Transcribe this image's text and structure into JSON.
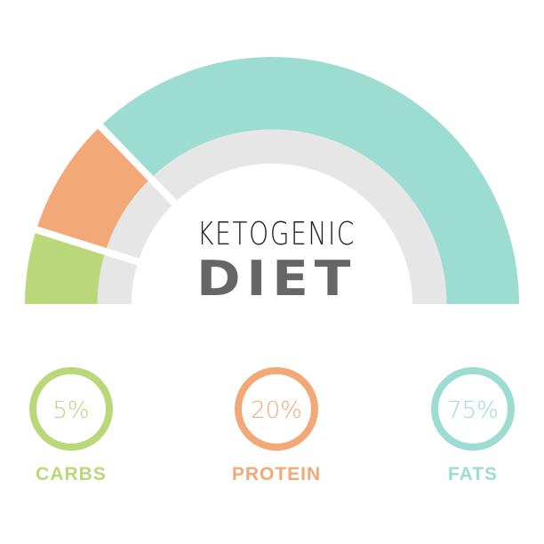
{
  "title_line1": "KETOGENIC",
  "title_line2": "DIET",
  "chart_data": {
    "type": "pie",
    "style": "semi-donut",
    "categories": [
      "CARBS",
      "PROTEIN",
      "FATS"
    ],
    "values": [
      5,
      20,
      75
    ],
    "labels": [
      "5%",
      "20%",
      "75%"
    ],
    "colors": [
      "#bad77a",
      "#f2a877",
      "#9cdcd1"
    ],
    "track_color": "#e6e6e6",
    "title_color": "#666666"
  }
}
